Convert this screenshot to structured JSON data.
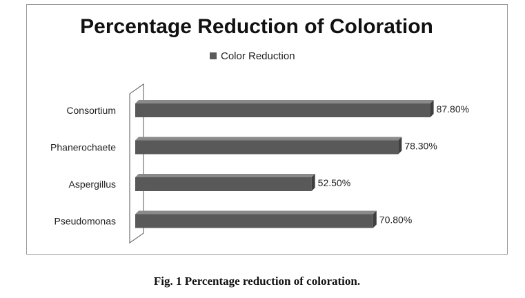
{
  "chart_data": {
    "type": "bar",
    "orientation": "horizontal",
    "title": "Percentage Reduction of Coloration",
    "categories": [
      "Consortium",
      "Phanerochaete",
      "Aspergillus",
      "Pseudomonas"
    ],
    "series": [
      {
        "name": "Color Reduction",
        "values": [
          87.8,
          78.3,
          52.5,
          70.8
        ],
        "color": "#595959"
      }
    ],
    "data_labels": [
      "87.80%",
      "78.30%",
      "52.50%",
      "70.80%"
    ],
    "xlim": [
      0,
      100
    ],
    "legend_position": "top",
    "grid": false,
    "style": "3d"
  },
  "caption": "Fig. 1 Percentage reduction of coloration."
}
